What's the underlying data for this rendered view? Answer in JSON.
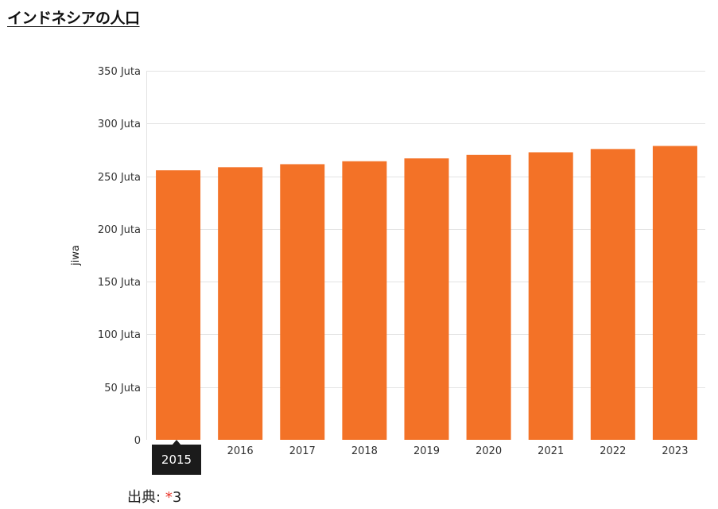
{
  "page_title": "インドネシアの人口",
  "tooltip": {
    "label": "2015"
  },
  "source": {
    "label": "出典:",
    "mark": "*",
    "ref": "3"
  },
  "colors": {
    "bar": "#f37227",
    "grid": "#e3e3e3",
    "tooltip_bg": "#1b1b1b",
    "source_mark": "#e8352b"
  },
  "chart_data": {
    "type": "bar",
    "title": "インドネシアの人口",
    "xlabel": "",
    "ylabel": "jiwa",
    "categories": [
      "2015",
      "2016",
      "2017",
      "2018",
      "2019",
      "2020",
      "2021",
      "2022",
      "2023"
    ],
    "series": [
      {
        "name": "jiwa",
        "values": [
          255.6,
          258.5,
          261.4,
          264.2,
          266.9,
          270.2,
          272.7,
          275.8,
          278.7
        ]
      }
    ],
    "value_unit": "Juta",
    "ylim": [
      0,
      350
    ],
    "yticks": [
      0,
      50,
      100,
      150,
      200,
      250,
      300,
      350
    ],
    "ytick_labels": [
      "0",
      "50 Juta",
      "100 Juta",
      "150 Juta",
      "200 Juta",
      "250 Juta",
      "300 Juta",
      "350 Juta"
    ],
    "grid": true,
    "legend": "none"
  }
}
